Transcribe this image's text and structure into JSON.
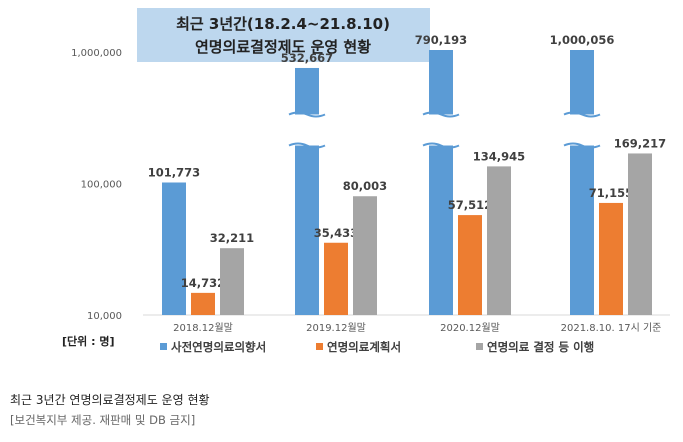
{
  "chart_data": {
    "type": "bar",
    "title": "최근 3년간(18.2.4~21.8.10)",
    "subtitle": "연명의료결정제도 운영 현황",
    "unit_label": "[단위 : 명]",
    "y_scale": "log",
    "ylim": [
      10000,
      1000000
    ],
    "y_ticks": [
      "1,000,000",
      "100,000",
      "10,000"
    ],
    "y_tick_values": [
      1000000,
      100000,
      10000
    ],
    "grid": false,
    "legend_position": "bottom",
    "categories": [
      "2018.12월말",
      "2019.12월말",
      "2020.12월말",
      "2021.8.10. 17시 기준"
    ],
    "series": [
      {
        "name": "사전연명의료의향서",
        "color": "#5B9BD5",
        "values": [
          101773,
          532667,
          790193,
          1000056
        ],
        "labels": [
          "101,773",
          "532,667",
          "790,193",
          "1,000,056"
        ]
      },
      {
        "name": "연명의료계획서",
        "color": "#ED7D31",
        "values": [
          14732,
          35433,
          57512,
          71155
        ],
        "labels": [
          "14,732",
          "35,433",
          "57,512",
          "71,155"
        ]
      },
      {
        "name": "연명의료 결정 등 이행",
        "color": "#A5A5A5",
        "values": [
          32211,
          80003,
          134945,
          169217
        ],
        "labels": [
          "32,211",
          "80,003",
          "134,945",
          "169,217"
        ]
      }
    ],
    "axis_break_series": "사전연명의료의향서",
    "axis_break_categories": [
      "2019.12월말",
      "2020.12월말",
      "2021.8.10. 17시 기준"
    ]
  },
  "caption": {
    "title": "최근 3년간 연명의료결정제도 운영 현황",
    "credit": "[보건복지부 제공. 재판매 및 DB 금지]"
  },
  "colors": {
    "title_box_bg": "#BDD7EE",
    "axis_line": "#D9D9D9",
    "label_text": "#404040"
  }
}
